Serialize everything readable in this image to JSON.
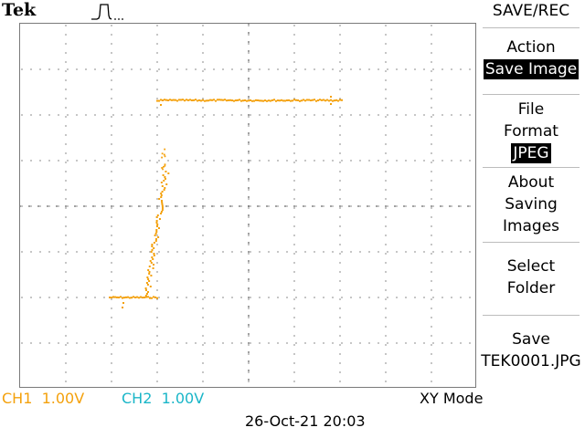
{
  "header": {
    "brand": "Tek",
    "trigger_icon": "pulse-trigger-icon"
  },
  "menu": {
    "title": "SAVE/REC",
    "action": {
      "label": "Action",
      "value": "Save Image"
    },
    "file_format": {
      "label_line1": "File",
      "label_line2": "Format",
      "value": "JPEG"
    },
    "about": {
      "line1": "About",
      "line2": "Saving",
      "line3": "Images"
    },
    "select_folder": {
      "line1": "Select",
      "line2": "Folder"
    },
    "save": {
      "line1": "Save",
      "line2": "TEK0001.JPG"
    }
  },
  "status": {
    "ch1_label": "CH1",
    "ch1_scale": "1.00V",
    "ch2_label": "CH2",
    "ch2_scale": "1.00V",
    "mode": "XY Mode",
    "datetime": "26-Oct-21 20:03"
  },
  "colors": {
    "ch1": "#f4a10c",
    "ch2": "#1ab6c8",
    "trace": "#f4a10c"
  }
}
